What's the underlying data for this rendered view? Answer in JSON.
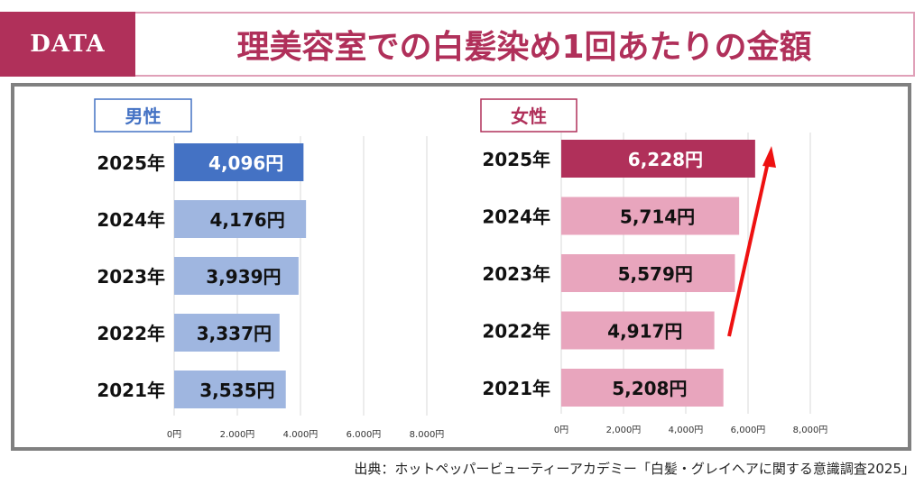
{
  "header": {
    "tag": "DATA",
    "title": "理美容室での白髪染め1回あたりの金額"
  },
  "source": "出典：ホットペッパービューティーアカデミー「白髪・グレイヘアに関する意識調査2025」",
  "chart_data": [
    {
      "type": "bar",
      "orientation": "horizontal",
      "title": "男性",
      "categories": [
        "2025年",
        "2024年",
        "2023年",
        "2022年",
        "2021年"
      ],
      "values": [
        4096,
        4176,
        3939,
        3337,
        3535
      ],
      "data_labels": [
        "4,096円",
        "4,176円",
        "3,939円",
        "3,337円",
        "3,535円"
      ],
      "xlim": [
        0,
        8000
      ],
      "xticks": [
        "0円",
        "2.000円",
        "4.000円",
        "6.000円",
        "8.000円"
      ],
      "grid": true,
      "colors": {
        "highlight": "#4472c4",
        "normal": "#9fb6e0",
        "title": "#4472c4"
      }
    },
    {
      "type": "bar",
      "orientation": "horizontal",
      "title": "女性",
      "categories": [
        "2025年",
        "2024年",
        "2023年",
        "2022年",
        "2021年"
      ],
      "values": [
        6228,
        5714,
        5579,
        4917,
        5208
      ],
      "data_labels": [
        "6,228円",
        "5,714円",
        "5,579円",
        "4,917円",
        "5,208円"
      ],
      "xlim": [
        0,
        8000
      ],
      "xticks": [
        "0円",
        "2,000円",
        "4,000円",
        "6,000円",
        "8,000円"
      ],
      "grid": true,
      "annotation": "red upward arrow from 2022 to 2025",
      "colors": {
        "highlight": "#b0305a",
        "normal": "#e8a5bd",
        "title": "#b0305a",
        "arrow": "#ee1111"
      }
    }
  ]
}
